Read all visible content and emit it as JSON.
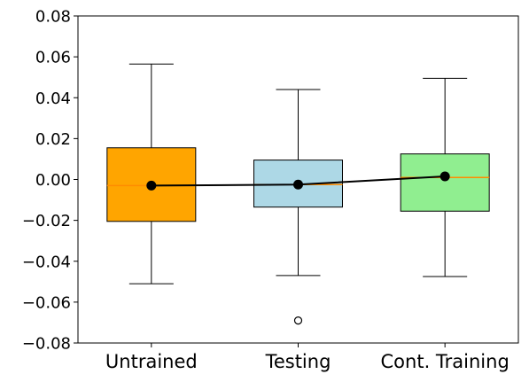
{
  "chart_data": {
    "type": "box",
    "title": "",
    "xlabel": "",
    "ylabel": "",
    "ylim": [
      -0.08,
      0.08
    ],
    "yticks": [
      -0.08,
      -0.06,
      -0.04,
      -0.02,
      0.0,
      0.02,
      0.04,
      0.06,
      0.08
    ],
    "ytick_labels": [
      "−0.08",
      "−0.06",
      "−0.04",
      "−0.02",
      "0.00",
      "0.02",
      "0.04",
      "0.06",
      "0.08"
    ],
    "grid": false,
    "legend": "none",
    "categories": [
      "Untrained",
      "Testing",
      "Cont. Training"
    ],
    "boxes": [
      {
        "label": "Untrained",
        "whisker_low": -0.051,
        "q1": -0.0205,
        "median": -0.003,
        "q3": 0.0155,
        "whisker_high": 0.0565,
        "mean": -0.003,
        "outliers": [],
        "color": "#ffa500"
      },
      {
        "label": "Testing",
        "whisker_low": -0.047,
        "q1": -0.0135,
        "median": -0.0025,
        "q3": 0.0095,
        "whisker_high": 0.044,
        "mean": -0.0025,
        "outliers": [
          -0.069
        ],
        "color": "#add8e6"
      },
      {
        "label": "Cont. Training",
        "whisker_low": -0.0475,
        "q1": -0.0155,
        "median": 0.001,
        "q3": 0.0125,
        "whisker_high": 0.0495,
        "mean": 0.0015,
        "outliers": [],
        "color": "#90ee90"
      }
    ],
    "mean_line": {
      "color": "#000000"
    },
    "median_color": "#ff8c00"
  }
}
